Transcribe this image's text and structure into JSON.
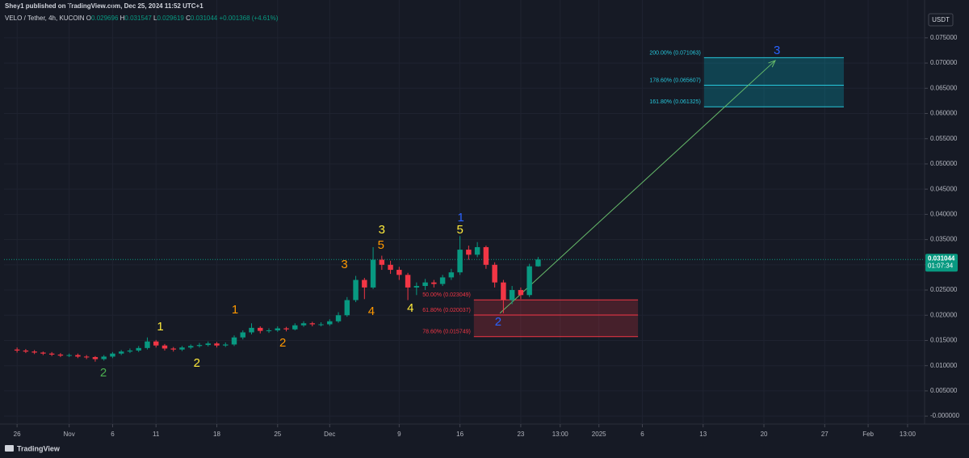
{
  "chart_data": {
    "type": "candlestick",
    "title": "Shey1 published on TradingView.com, Dec 25, 2024 11:52 UTC+1",
    "symbol": "VELO / Tether, 4h, KUCOIN",
    "ohlc": [
      {
        "key": "O",
        "value": "0.029696"
      },
      {
        "key": "H",
        "value": "0.031547"
      },
      {
        "key": "L",
        "value": "0.029619"
      },
      {
        "key": "C",
        "value": "0.031044"
      }
    ],
    "change": "+0.001368 (+4.61%)",
    "currency": "USDT",
    "brand": "TradingView",
    "up_color": "#089981",
    "down_color": "#f23645",
    "grid": true,
    "x": [
      0,
      1,
      2,
      3,
      4,
      5,
      6,
      7,
      8,
      9,
      10,
      11,
      12,
      13,
      14,
      15,
      16,
      17,
      18,
      19,
      20,
      21,
      22,
      23,
      24,
      25,
      26,
      27,
      28,
      29,
      30,
      31,
      32,
      33,
      34,
      35,
      36,
      37,
      38,
      39,
      40,
      41,
      42,
      43,
      44,
      45,
      46,
      47,
      48,
      49,
      50,
      51,
      52,
      53,
      54,
      55,
      56,
      57,
      58,
      59,
      60
    ],
    "open": [
      0.0132,
      0.013,
      0.0128,
      0.0126,
      0.0124,
      0.0122,
      0.012,
      0.0121,
      0.0118,
      0.0117,
      0.0113,
      0.0118,
      0.0124,
      0.0128,
      0.013,
      0.0135,
      0.0148,
      0.014,
      0.0134,
      0.0132,
      0.0136,
      0.0139,
      0.0141,
      0.0144,
      0.014,
      0.0142,
      0.0156,
      0.0166,
      0.0175,
      0.0169,
      0.017,
      0.0174,
      0.0172,
      0.018,
      0.0184,
      0.0182,
      0.0182,
      0.0188,
      0.02,
      0.023,
      0.027,
      0.0255,
      0.031,
      0.03,
      0.029,
      0.028,
      0.0255,
      0.0258,
      0.0265,
      0.0262,
      0.0275,
      0.0285,
      0.033,
      0.032,
      0.0335,
      0.03,
      0.0265,
      0.023,
      0.025,
      0.024,
      0.029696
    ],
    "high": [
      0.0136,
      0.0133,
      0.0131,
      0.0128,
      0.0127,
      0.0125,
      0.0124,
      0.0124,
      0.0121,
      0.0119,
      0.0121,
      0.0127,
      0.0131,
      0.0134,
      0.0139,
      0.0156,
      0.0151,
      0.0143,
      0.0137,
      0.0139,
      0.0142,
      0.0145,
      0.0148,
      0.0147,
      0.0146,
      0.016,
      0.017,
      0.0184,
      0.0178,
      0.0174,
      0.0178,
      0.0177,
      0.0184,
      0.0188,
      0.0187,
      0.0186,
      0.0192,
      0.0206,
      0.0236,
      0.0278,
      0.0274,
      0.0335,
      0.0318,
      0.0308,
      0.0296,
      0.0284,
      0.0265,
      0.0272,
      0.027,
      0.028,
      0.0292,
      0.0357,
      0.0338,
      0.0345,
      0.0338,
      0.0305,
      0.027,
      0.0258,
      0.0255,
      0.0302,
      0.031547
    ],
    "low": [
      0.0126,
      0.0125,
      0.0123,
      0.0121,
      0.0119,
      0.0117,
      0.0117,
      0.0115,
      0.0113,
      0.0108,
      0.011,
      0.0115,
      0.0121,
      0.0125,
      0.0127,
      0.0132,
      0.0136,
      0.013,
      0.0128,
      0.0129,
      0.0133,
      0.0136,
      0.0138,
      0.0136,
      0.0137,
      0.0139,
      0.0152,
      0.0162,
      0.0164,
      0.0165,
      0.0167,
      0.0168,
      0.017,
      0.0177,
      0.0178,
      0.0178,
      0.0179,
      0.0185,
      0.0197,
      0.0226,
      0.0232,
      0.0252,
      0.029,
      0.0282,
      0.027,
      0.023,
      0.024,
      0.025,
      0.0255,
      0.0258,
      0.027,
      0.028,
      0.031,
      0.0315,
      0.0292,
      0.0255,
      0.0204,
      0.0222,
      0.0232,
      0.0236,
      0.029619
    ],
    "close": [
      0.013,
      0.0128,
      0.0126,
      0.0124,
      0.0122,
      0.012,
      0.0121,
      0.0118,
      0.0117,
      0.0113,
      0.0118,
      0.0124,
      0.0128,
      0.013,
      0.0135,
      0.0148,
      0.014,
      0.0134,
      0.0132,
      0.0136,
      0.0139,
      0.0141,
      0.0144,
      0.014,
      0.0142,
      0.0156,
      0.0166,
      0.0175,
      0.0169,
      0.017,
      0.0174,
      0.0172,
      0.018,
      0.0184,
      0.0182,
      0.0182,
      0.0188,
      0.02,
      0.023,
      0.027,
      0.0255,
      0.031,
      0.03,
      0.029,
      0.028,
      0.0255,
      0.0258,
      0.0265,
      0.0262,
      0.0275,
      0.0285,
      0.033,
      0.032,
      0.0335,
      0.03,
      0.0265,
      0.023,
      0.025,
      0.024,
      0.0297,
      0.031044
    ],
    "xlim": [
      -1.5,
      104.5
    ],
    "ylim": [
      -0.0011,
      0.0801
    ],
    "xticks": [
      {
        "value": 0,
        "label": "26"
      },
      {
        "value": 6,
        "label": "Nov"
      },
      {
        "value": 11,
        "label": "6"
      },
      {
        "value": 16,
        "label": "11"
      },
      {
        "value": 23,
        "label": "18"
      },
      {
        "value": 30,
        "label": "25"
      },
      {
        "value": 36,
        "label": "Dec"
      },
      {
        "value": 44,
        "label": "9"
      },
      {
        "value": 51,
        "label": "16"
      },
      {
        "value": 58,
        "label": "23"
      },
      {
        "value": 62.54,
        "label": "13:00"
      },
      {
        "value": 67,
        "label": "2025"
      },
      {
        "value": 72,
        "label": "6"
      },
      {
        "value": 79,
        "label": "13"
      },
      {
        "value": 86,
        "label": "20"
      },
      {
        "value": 93,
        "label": "27"
      },
      {
        "value": 98,
        "label": "Feb"
      },
      {
        "value": 102.54,
        "label": "13:00"
      }
    ],
    "yticks": [
      {
        "value": 0.075,
        "label": "0.075000"
      },
      {
        "value": 0.07,
        "label": "0.070000"
      },
      {
        "value": 0.065,
        "label": "0.065000"
      },
      {
        "value": 0.06,
        "label": "0.060000"
      },
      {
        "value": 0.055,
        "label": "0.055000"
      },
      {
        "value": 0.05,
        "label": "0.050000"
      },
      {
        "value": 0.045,
        "label": "0.045000"
      },
      {
        "value": 0.04,
        "label": "0.040000"
      },
      {
        "value": 0.035,
        "label": "0.035000"
      },
      {
        "value": 0.03,
        "label": "0.030000"
      },
      {
        "value": 0.025,
        "label": "0.025000"
      },
      {
        "value": 0.02,
        "label": "0.020000"
      },
      {
        "value": 0.015,
        "label": "0.015000"
      },
      {
        "value": 0.01,
        "label": "0.010000"
      },
      {
        "value": 0.005,
        "label": "0.005000"
      },
      {
        "value": 0,
        "label": "-0.000000"
      }
    ],
    "last_price": {
      "value": 0.031044,
      "label": "0.031044"
    },
    "countdown": "01:07:34",
    "fib_retracement": {
      "color": "#f23645",
      "span": [
        52.6,
        71.5
      ],
      "levels": [
        {
          "value": 0.023049,
          "label": "50.00% (0.023049)"
        },
        {
          "value": 0.020037,
          "label": "61.80% (0.020037)"
        },
        {
          "value": 0.015749,
          "label": "78.60% (0.015749)"
        }
      ]
    },
    "fib_extension": {
      "color": "#26c6da",
      "span": [
        79.1,
        95.2
      ],
      "levels": [
        {
          "value": 0.071063,
          "label": "200.00% (0.071063)"
        },
        {
          "value": 0.065607,
          "label": "178.60% (0.065607)"
        },
        {
          "value": 0.061325,
          "label": "161.80% (0.061325)"
        }
      ]
    },
    "arrow": {
      "color": "#66bb6a",
      "x": [
        55.6,
        87.3
      ],
      "y": [
        0.0204,
        0.0705
      ]
    },
    "wave_labels": [
      {
        "text": "2",
        "color": "#4caf50",
        "x": 9.94,
        "y": 0.00849
      },
      {
        "text": "1",
        "color": "#ffeb3b",
        "x": 16.5,
        "y": 0.01763
      },
      {
        "text": "2",
        "color": "#ffeb3b",
        "x": 20.7,
        "y": 0.01042
      },
      {
        "text": "1",
        "color": "#ff9800",
        "x": 25.1,
        "y": 0.02099
      },
      {
        "text": "2",
        "color": "#ff9800",
        "x": 30.6,
        "y": 0.01442
      },
      {
        "text": "3",
        "color": "#ff9800",
        "x": 37.7,
        "y": 0.02997
      },
      {
        "text": "3",
        "color": "#ffeb3b",
        "x": 42.0,
        "y": 0.03686
      },
      {
        "text": "5",
        "color": "#ff9800",
        "x": 41.9,
        "y": 0.03381
      },
      {
        "text": "4",
        "color": "#ff9800",
        "x": 40.8,
        "y": 0.02067
      },
      {
        "text": "4",
        "color": "#ffeb3b",
        "x": 45.3,
        "y": 0.02131
      },
      {
        "text": "1",
        "color": "#2962ff",
        "x": 51.1,
        "y": 0.03926
      },
      {
        "text": "5",
        "color": "#ffeb3b",
        "x": 51.0,
        "y": 0.03686
      },
      {
        "text": "2",
        "color": "#2962ff",
        "x": 55.4,
        "y": 0.01859
      },
      {
        "text": "3",
        "color": "#2962ff",
        "x": 87.5,
        "y": 0.07244
      }
    ]
  }
}
